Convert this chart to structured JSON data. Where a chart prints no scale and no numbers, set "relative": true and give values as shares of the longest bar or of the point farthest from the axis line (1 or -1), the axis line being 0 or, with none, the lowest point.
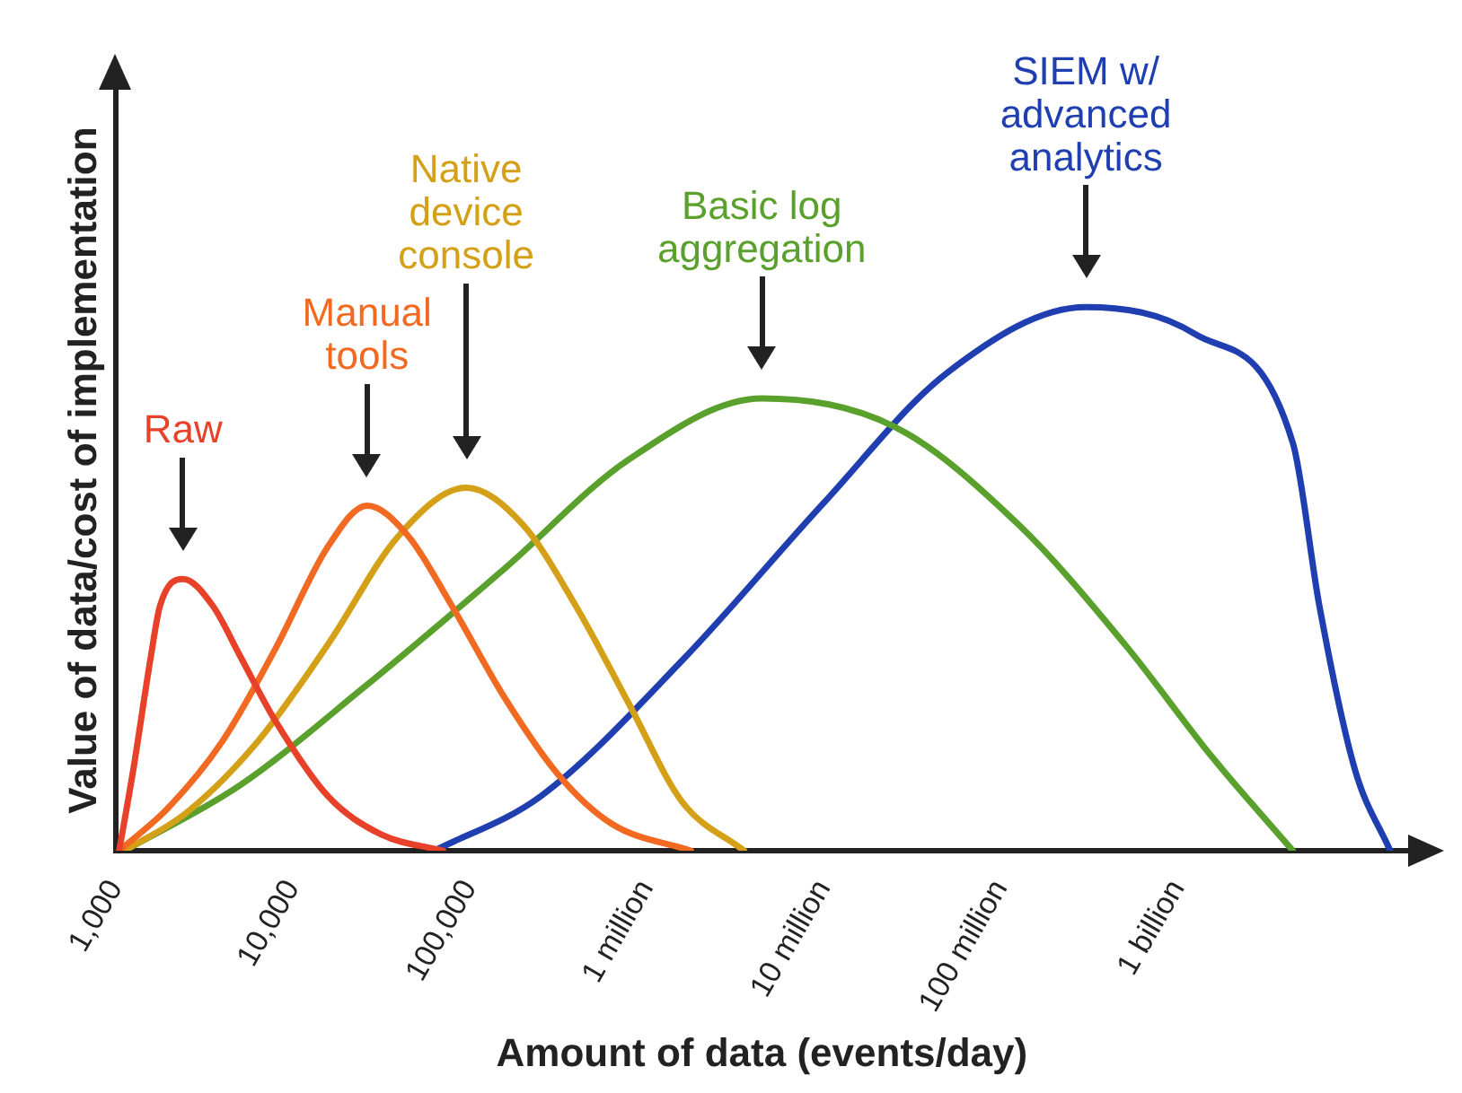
{
  "chart_data": {
    "type": "line",
    "relative": true,
    "log": "x",
    "xlabel": "Amount of data (events/day)",
    "ylabel": "Value of data/cost of implementation",
    "xlim": [
      1000,
      20000000000
    ],
    "xticks": [
      {
        "value": 1000,
        "label": "1,000"
      },
      {
        "value": 10000,
        "label": "10,000"
      },
      {
        "value": 100000,
        "label": "100,000"
      },
      {
        "value": 1000000,
        "label": "1 million"
      },
      {
        "value": 10000000,
        "label": "10 million"
      },
      {
        "value": 100000000,
        "label": "100 million"
      },
      {
        "value": 1000000000,
        "label": "1 billion"
      }
    ],
    "grid": false,
    "legend": false,
    "marker": "none",
    "line_style": "solid",
    "series": [
      {
        "name": "Raw",
        "color": "#e8412a",
        "x": [
          1047,
          1259,
          1585,
          1778,
          2399,
          3548,
          5012,
          7943,
          15849,
          31623,
          70795
        ],
        "values": [
          0,
          0.15,
          0.36,
          0.45,
          0.5,
          0.45,
          0.36,
          0.24,
          0.1,
          0.03,
          0
        ]
      },
      {
        "name": "Manual\ntools",
        "color": "#f26a21",
        "x": [
          1047,
          1995,
          3981,
          7943,
          15849,
          26303,
          44668,
          79433,
          158489,
          316228,
          630957,
          1778279
        ],
        "values": [
          0,
          0.08,
          0.2,
          0.37,
          0.56,
          0.635,
          0.58,
          0.45,
          0.28,
          0.14,
          0.05,
          0
        ]
      },
      {
        "name": "Native\ndevice\nconsole",
        "color": "#d4a017",
        "x": [
          1122,
          2512,
          6310,
          15849,
          39811,
          95499,
          199526,
          398107,
          794328,
          1584893,
          3548134
        ],
        "values": [
          0,
          0.07,
          0.2,
          0.38,
          0.58,
          0.668,
          0.6,
          0.45,
          0.27,
          0.09,
          0
        ]
      },
      {
        "name": "Basic log\naggregation",
        "color": "#5aa02c",
        "x": [
          1122,
          5012,
          25119,
          158489,
          794328,
          4466836,
          25118864,
          125892541,
          501187234,
          1584893192,
          4466835922
        ],
        "values": [
          0,
          0.12,
          0.3,
          0.52,
          0.72,
          0.832,
          0.78,
          0.6,
          0.38,
          0.17,
          0
        ]
      },
      {
        "name": "SIEM w/\nadvanced\nanalytics",
        "color": "#1f3fb0",
        "x": [
          63096,
          251189,
          1584893,
          10000000,
          50118723,
          301995172,
          1258925412,
          4466835922,
          6309573445,
          10000000000,
          15848931925
        ],
        "values": [
          0,
          0.1,
          0.35,
          0.64,
          0.88,
          1,
          0.95,
          0.75,
          0.45,
          0.15,
          0
        ]
      }
    ]
  }
}
